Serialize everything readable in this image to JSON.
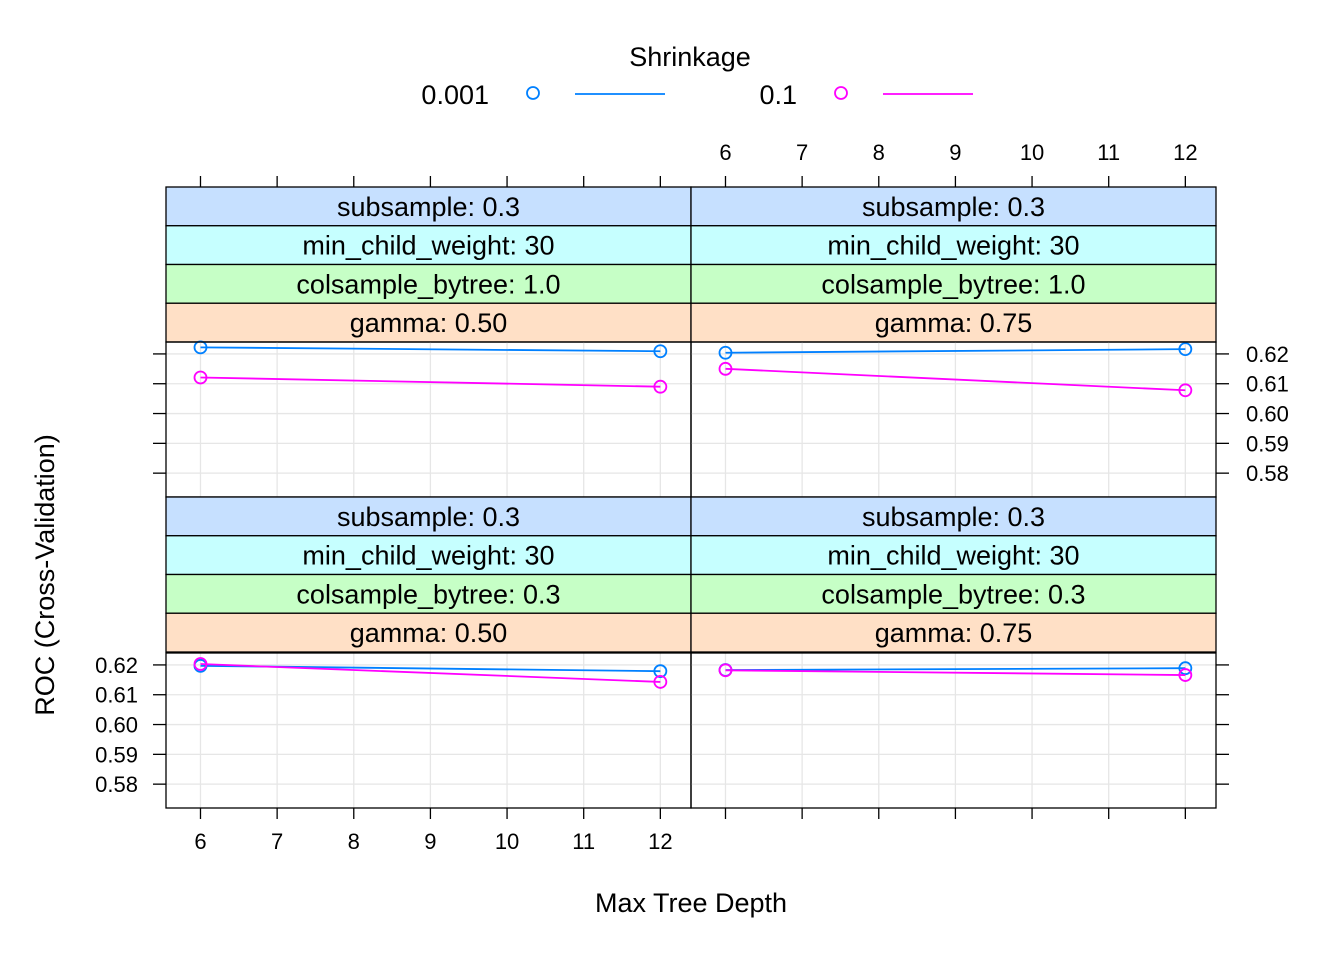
{
  "legend": {
    "title": "Shrinkage",
    "entries": [
      {
        "label": "0.001",
        "color": "#0080ff"
      },
      {
        "label": "0.1",
        "color": "#ff00ff"
      }
    ]
  },
  "xlabel": "Max Tree Depth",
  "ylabel": "ROC (Cross-Validation)",
  "colors": {
    "strip_subsample": "#c6e0ff",
    "strip_min_child_weight": "#c6ffff",
    "strip_colsample": "#c6ffc6",
    "strip_gamma": "#ffe0c6",
    "grid": "#e6e6e6",
    "series_0.001": "#0080ff",
    "series_0.1": "#ff00ff"
  },
  "chart_data": {
    "type": "line",
    "xlim": [
      5.55,
      12.4
    ],
    "ylim": [
      0.572,
      0.624
    ],
    "x_ticks": [
      6,
      7,
      8,
      9,
      10,
      11,
      12
    ],
    "y_ticks": [
      0.58,
      0.59,
      0.6,
      0.61,
      0.62
    ],
    "y_tick_labels": [
      "0.58",
      "0.59",
      "0.60",
      "0.61",
      "0.62"
    ],
    "grid": true,
    "legend_placement": "top",
    "panels": [
      {
        "row": "top",
        "col": "left",
        "strips": [
          "subsample: 0.3",
          "min_child_weight: 30",
          "colsample_bytree: 1.0",
          "gamma: 0.50"
        ],
        "series": [
          {
            "name": "0.001",
            "x": [
              6,
              12
            ],
            "y": [
              0.6222,
              0.6209
            ]
          },
          {
            "name": "0.1",
            "x": [
              6,
              12
            ],
            "y": [
              0.6121,
              0.609
            ]
          }
        ]
      },
      {
        "row": "top",
        "col": "right",
        "strips": [
          "subsample: 0.3",
          "min_child_weight: 30",
          "colsample_bytree: 1.0",
          "gamma: 0.75"
        ],
        "series": [
          {
            "name": "0.001",
            "x": [
              6,
              12
            ],
            "y": [
              0.6204,
              0.6216
            ]
          },
          {
            "name": "0.1",
            "x": [
              6,
              12
            ],
            "y": [
              0.615,
              0.6078
            ]
          }
        ]
      },
      {
        "row": "bottom",
        "col": "left",
        "strips": [
          "subsample: 0.3",
          "min_child_weight: 30",
          "colsample_bytree: 0.3",
          "gamma: 0.50"
        ],
        "series": [
          {
            "name": "0.001",
            "x": [
              6,
              12
            ],
            "y": [
              0.6197,
              0.6179
            ]
          },
          {
            "name": "0.1",
            "x": [
              6,
              12
            ],
            "y": [
              0.6203,
              0.6143
            ]
          }
        ]
      },
      {
        "row": "bottom",
        "col": "right",
        "strips": [
          "subsample: 0.3",
          "min_child_weight: 30",
          "colsample_bytree: 0.3",
          "gamma: 0.75"
        ],
        "series": [
          {
            "name": "0.001",
            "x": [
              6,
              12
            ],
            "y": [
              0.6183,
              0.6189
            ]
          },
          {
            "name": "0.1",
            "x": [
              6,
              12
            ],
            "y": [
              0.6182,
              0.6166
            ]
          }
        ]
      }
    ]
  }
}
